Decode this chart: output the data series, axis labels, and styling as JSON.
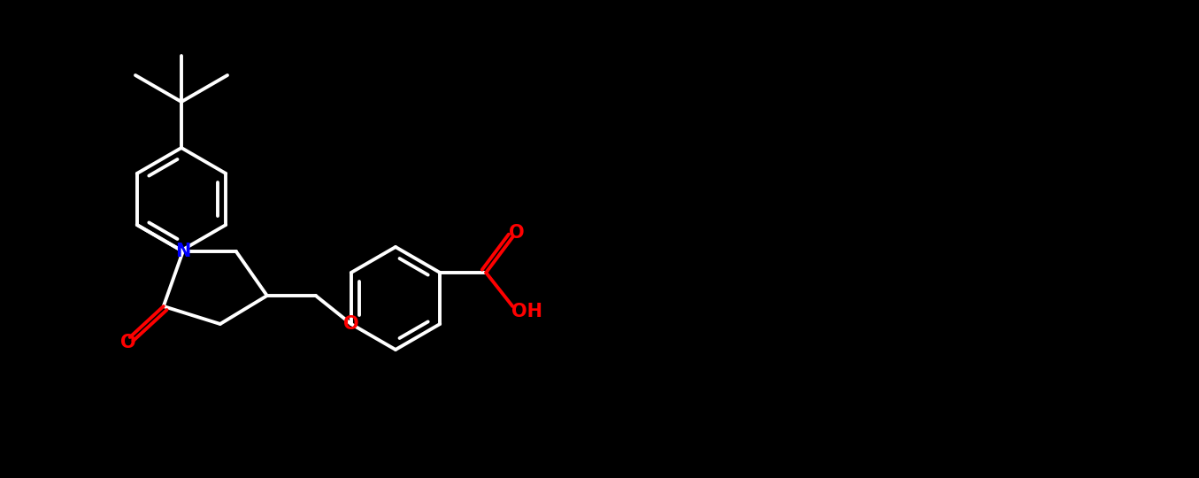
{
  "background_color": "#000000",
  "bond_color": "#FFFFFF",
  "N_color": "#0000FF",
  "O_color": "#FF0000",
  "line_width": 2.8,
  "figsize": [
    13.55,
    5.4
  ],
  "dpi": 100,
  "xlim": [
    0,
    13.55
  ],
  "ylim": [
    0,
    5.4
  ],
  "r_hex": 0.58,
  "font_size": 15
}
